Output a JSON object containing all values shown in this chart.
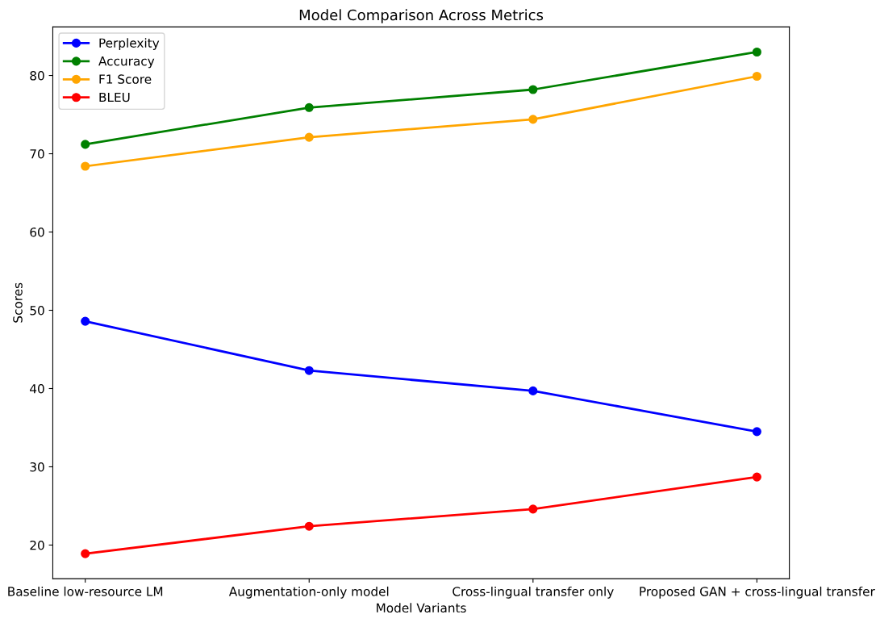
{
  "chart_data": {
    "type": "line",
    "title": "Model Comparison Across Metrics",
    "xlabel": "Model Variants",
    "ylabel": "Scores",
    "categories": [
      "Baseline low-resource LM",
      "Augmentation-only model",
      "Cross-lingual transfer only",
      "Proposed GAN + cross-lingual transfer"
    ],
    "series": [
      {
        "name": "Perplexity",
        "color": "#0000ff",
        "values": [
          48.6,
          42.3,
          39.7,
          34.5
        ]
      },
      {
        "name": "Accuracy",
        "color": "#008000",
        "values": [
          71.2,
          75.9,
          78.2,
          83.0
        ]
      },
      {
        "name": "F1 Score",
        "color": "#ffa500",
        "values": [
          68.4,
          72.1,
          74.4,
          79.9
        ]
      },
      {
        "name": "BLEU",
        "color": "#ff0000",
        "values": [
          18.9,
          22.4,
          24.6,
          28.7
        ]
      }
    ],
    "ylim": [
      15.7,
      86.2
    ],
    "yticks": [
      20,
      30,
      40,
      50,
      60,
      70,
      80
    ],
    "marker": "circle",
    "line_style": "solid",
    "legend": "top left",
    "grid": false
  }
}
